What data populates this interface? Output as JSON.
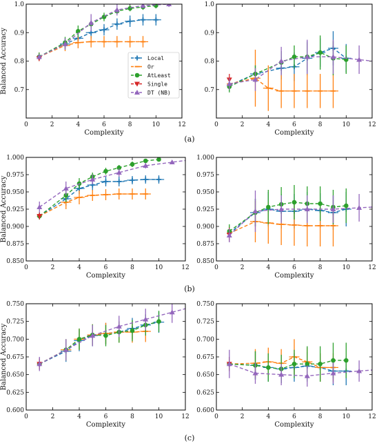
{
  "colors": {
    "Local": "#1f77b4",
    "Or": "#ff7f0e",
    "AtLeast": "#2ca02c",
    "Single": "#d62728",
    "DT (NB)": "#9467bd"
  },
  "chart_data": [
    {
      "type": "line",
      "panel": "a-left",
      "caption": "",
      "xlabel": "Complexity",
      "ylabel": "Balanced Accuracy",
      "xlim": [
        0,
        12
      ],
      "ylim": [
        0.6,
        1.0
      ],
      "xticks": [
        0,
        2,
        4,
        6,
        8,
        10,
        12
      ],
      "yticks": [
        0.7,
        0.8,
        0.9,
        1.0
      ],
      "legend": {
        "placement": "center-right",
        "entries": [
          "Local",
          "Or",
          "AtLeast",
          "Single",
          "DT (NB)"
        ]
      },
      "series": [
        {
          "name": "Local",
          "x": [
            1,
            3,
            4,
            5,
            6,
            7,
            8,
            9,
            10
          ],
          "y": [
            0.815,
            0.86,
            0.88,
            0.9,
            0.91,
            0.93,
            0.94,
            0.945,
            0.945
          ],
          "err": [
            0.015,
            0.02,
            0.02,
            0.02,
            0.02,
            0.02,
            0.02,
            0.02,
            0.02
          ]
        },
        {
          "name": "Or",
          "x": [
            1,
            3,
            4,
            5,
            6,
            7,
            8,
            9
          ],
          "y": [
            0.815,
            0.855,
            0.865,
            0.868,
            0.868,
            0.868,
            0.868,
            0.868
          ],
          "err": [
            0.015,
            0.02,
            0.02,
            0.02,
            0.02,
            0.02,
            0.02,
            0.02
          ]
        },
        {
          "name": "AtLeast",
          "x": [
            1,
            3,
            4,
            5,
            6,
            7,
            8,
            9,
            10
          ],
          "y": [
            0.815,
            0.865,
            0.905,
            0.93,
            0.955,
            0.975,
            0.985,
            0.99,
            0.995
          ],
          "err": [
            0.015,
            0.02,
            0.02,
            0.015,
            0.015,
            0.01,
            0.01,
            0.01,
            0.01
          ]
        },
        {
          "name": "Single",
          "x": [
            1
          ],
          "y": [
            0.81
          ],
          "err": [
            0.01
          ]
        },
        {
          "name": "DT (NB)",
          "x": [
            1,
            3,
            5,
            7,
            9,
            11
          ],
          "y": [
            0.815,
            0.86,
            0.935,
            0.98,
            0.995,
            1.0
          ],
          "err": [
            0.01,
            0.02,
            0.03,
            0.02,
            0.01,
            0.01
          ]
        }
      ]
    },
    {
      "type": "line",
      "panel": "a-right",
      "caption": "(a)",
      "xlabel": "Complexity",
      "ylabel": "",
      "xlim": [
        0,
        12
      ],
      "ylim": [
        0.6,
        1.0
      ],
      "xticks": [
        0,
        2,
        4,
        6,
        8,
        10,
        12
      ],
      "yticks": [
        0.7,
        0.8,
        0.9,
        1.0
      ],
      "series": [
        {
          "name": "Local",
          "x": [
            1,
            3,
            5,
            6,
            7,
            8,
            9,
            10
          ],
          "y": [
            0.715,
            0.755,
            0.775,
            0.78,
            0.81,
            0.83,
            0.845,
            0.81
          ],
          "err": [
            0.02,
            0.03,
            0.04,
            0.05,
            0.06,
            0.05,
            0.06,
            0.05
          ]
        },
        {
          "name": "Or",
          "x": [
            1,
            3,
            4,
            5,
            6,
            7,
            8,
            9
          ],
          "y": [
            0.72,
            0.74,
            0.705,
            0.695,
            0.695,
            0.695,
            0.695,
            0.695
          ],
          "err": [
            0.02,
            0.1,
            0.08,
            0.06,
            0.06,
            0.06,
            0.06,
            0.06
          ]
        },
        {
          "name": "AtLeast",
          "x": [
            1,
            3,
            5,
            6,
            7,
            8,
            9,
            10
          ],
          "y": [
            0.71,
            0.755,
            0.795,
            0.815,
            0.815,
            0.83,
            0.81,
            0.805
          ],
          "err": [
            0.02,
            0.03,
            0.04,
            0.04,
            0.05,
            0.06,
            0.06,
            0.05
          ]
        },
        {
          "name": "Single",
          "x": [
            1
          ],
          "y": [
            0.735
          ],
          "err": [
            0.02
          ]
        },
        {
          "name": "DT (NB)",
          "x": [
            1,
            3,
            5,
            7,
            9,
            11
          ],
          "y": [
            0.72,
            0.735,
            0.8,
            0.815,
            0.815,
            0.805
          ],
          "err": [
            0.02,
            0.04,
            0.05,
            0.06,
            0.06,
            0.05
          ]
        }
      ]
    },
    {
      "type": "line",
      "panel": "b-left",
      "caption": "",
      "xlabel": "Complexity",
      "ylabel": "Balanced Accuracy",
      "xlim": [
        0,
        12
      ],
      "ylim": [
        0.85,
        1.0
      ],
      "xticks": [
        0,
        2,
        4,
        6,
        8,
        10,
        12
      ],
      "yticks": [
        0.85,
        0.875,
        0.9,
        0.925,
        0.95,
        0.975,
        1.0
      ],
      "series": [
        {
          "name": "Local",
          "x": [
            1,
            3,
            4,
            5,
            6,
            7,
            8,
            9,
            10
          ],
          "y": [
            0.915,
            0.94,
            0.955,
            0.96,
            0.965,
            0.965,
            0.967,
            0.968,
            0.968
          ],
          "err": [
            0.005,
            0.01,
            0.008,
            0.008,
            0.007,
            0.007,
            0.006,
            0.006,
            0.006
          ]
        },
        {
          "name": "Or",
          "x": [
            1,
            3,
            4,
            5,
            6,
            7,
            8,
            9
          ],
          "y": [
            0.915,
            0.935,
            0.942,
            0.945,
            0.946,
            0.947,
            0.947,
            0.947
          ],
          "err": [
            0.005,
            0.01,
            0.01,
            0.008,
            0.008,
            0.008,
            0.008,
            0.008
          ]
        },
        {
          "name": "AtLeast",
          "x": [
            1,
            3,
            4,
            5,
            6,
            7,
            8,
            9,
            10
          ],
          "y": [
            0.915,
            0.945,
            0.962,
            0.972,
            0.98,
            0.985,
            0.99,
            0.995,
            0.997
          ],
          "err": [
            0.005,
            0.01,
            0.008,
            0.006,
            0.005,
            0.004,
            0.004,
            0.003,
            0.003
          ]
        },
        {
          "name": "Single",
          "x": [
            1
          ],
          "y": [
            0.915
          ],
          "err": [
            0.005
          ]
        },
        {
          "name": "DT (NB)",
          "x": [
            1,
            3,
            5,
            7,
            9,
            11
          ],
          "y": [
            0.928,
            0.955,
            0.968,
            0.978,
            0.988,
            0.993
          ],
          "err": [
            0.008,
            0.01,
            0.007,
            0.006,
            0.004,
            0.003
          ]
        }
      ]
    },
    {
      "type": "line",
      "panel": "b-right",
      "caption": "(b)",
      "xlabel": "Complexity",
      "ylabel": "",
      "xlim": [
        0,
        12
      ],
      "ylim": [
        0.85,
        1.0
      ],
      "xticks": [
        0,
        2,
        4,
        6,
        8,
        10,
        12
      ],
      "yticks": [
        0.85,
        0.875,
        0.9,
        0.925,
        0.95,
        0.975,
        1.0
      ],
      "series": [
        {
          "name": "Local",
          "x": [
            1,
            3,
            4,
            5,
            6,
            7,
            8,
            9,
            10
          ],
          "y": [
            0.89,
            0.92,
            0.925,
            0.922,
            0.922,
            0.925,
            0.923,
            0.92,
            0.925
          ],
          "err": [
            0.01,
            0.02,
            0.025,
            0.025,
            0.025,
            0.025,
            0.025,
            0.025,
            0.025
          ]
        },
        {
          "name": "Or",
          "x": [
            1,
            3,
            4,
            5,
            6,
            7,
            8,
            9
          ],
          "y": [
            0.89,
            0.907,
            0.905,
            0.903,
            0.902,
            0.901,
            0.901,
            0.901
          ],
          "err": [
            0.01,
            0.03,
            0.03,
            0.03,
            0.03,
            0.03,
            0.03,
            0.03
          ]
        },
        {
          "name": "AtLeast",
          "x": [
            1,
            3,
            4,
            5,
            6,
            7,
            8,
            9,
            10
          ],
          "y": [
            0.893,
            0.92,
            0.928,
            0.932,
            0.935,
            0.933,
            0.933,
            0.928,
            0.93
          ],
          "err": [
            0.01,
            0.02,
            0.025,
            0.025,
            0.025,
            0.025,
            0.025,
            0.025,
            0.025
          ]
        },
        {
          "name": "Single",
          "x": [
            1
          ],
          "y": [
            0.888
          ],
          "err": [
            0.01
          ]
        },
        {
          "name": "DT (NB)",
          "x": [
            1,
            3,
            5,
            7,
            9,
            11
          ],
          "y": [
            0.887,
            0.922,
            0.925,
            0.925,
            0.925,
            0.927
          ],
          "err": [
            0.01,
            0.03,
            0.02,
            0.02,
            0.02,
            0.02
          ]
        }
      ]
    },
    {
      "type": "line",
      "panel": "c-left",
      "caption": "",
      "xlabel": "Complexity",
      "ylabel": "Balanced Accuracy",
      "xlim": [
        0,
        12
      ],
      "ylim": [
        0.6,
        0.75
      ],
      "xticks": [
        0,
        2,
        4,
        6,
        8,
        10,
        12
      ],
      "yticks": [
        0.6,
        0.625,
        0.65,
        0.675,
        0.7,
        0.725,
        0.75
      ],
      "series": [
        {
          "name": "Local",
          "x": [
            1,
            3,
            4,
            5,
            6,
            7,
            8,
            9,
            10
          ],
          "y": [
            0.665,
            0.683,
            0.698,
            0.705,
            0.708,
            0.71,
            0.715,
            0.72,
            0.724
          ],
          "err": [
            0.008,
            0.015,
            0.015,
            0.015,
            0.015,
            0.015,
            0.015,
            0.015,
            0.015
          ]
        },
        {
          "name": "Or",
          "x": [
            1,
            3,
            4,
            5,
            6,
            7,
            8,
            9
          ],
          "y": [
            0.665,
            0.685,
            0.7,
            0.706,
            0.708,
            0.71,
            0.71,
            0.711
          ],
          "err": [
            0.008,
            0.015,
            0.015,
            0.015,
            0.015,
            0.015,
            0.015,
            0.015
          ]
        },
        {
          "name": "AtLeast",
          "x": [
            1,
            3,
            4,
            5,
            6,
            7,
            8,
            9,
            10
          ],
          "y": [
            0.665,
            0.685,
            0.7,
            0.706,
            0.705,
            0.71,
            0.712,
            0.72,
            0.725
          ],
          "err": [
            0.008,
            0.015,
            0.015,
            0.015,
            0.015,
            0.015,
            0.015,
            0.015,
            0.015
          ]
        },
        {
          "name": "Single",
          "x": [
            1
          ],
          "y": [
            0.665
          ],
          "err": [
            0.008
          ]
        },
        {
          "name": "DT (NB)",
          "x": [
            1,
            3,
            5,
            7,
            9,
            11
          ],
          "y": [
            0.665,
            0.685,
            0.705,
            0.718,
            0.728,
            0.738
          ],
          "err": [
            0.01,
            0.015,
            0.015,
            0.015,
            0.015,
            0.015
          ]
        }
      ]
    },
    {
      "type": "line",
      "panel": "c-right",
      "caption": "(c)",
      "xlabel": "Complexity",
      "ylabel": "",
      "xlim": [
        0,
        12
      ],
      "ylim": [
        0.6,
        0.75
      ],
      "xticks": [
        0,
        2,
        4,
        6,
        8,
        10,
        12
      ],
      "yticks": [
        0.6,
        0.625,
        0.65,
        0.675,
        0.7,
        0.725,
        0.75
      ],
      "series": [
        {
          "name": "Local",
          "x": [
            1,
            3,
            4,
            5,
            6,
            7,
            8,
            9,
            10
          ],
          "y": [
            0.665,
            0.663,
            0.66,
            0.658,
            0.66,
            0.662,
            0.66,
            0.655,
            0.655
          ],
          "err": [
            0.01,
            0.02,
            0.02,
            0.02,
            0.02,
            0.02,
            0.02,
            0.02,
            0.02
          ]
        },
        {
          "name": "Or",
          "x": [
            1,
            3,
            4,
            5,
            6,
            7,
            8,
            9
          ],
          "y": [
            0.665,
            0.666,
            0.668,
            0.666,
            0.675,
            0.668,
            0.66,
            0.66
          ],
          "err": [
            0.01,
            0.02,
            0.02,
            0.02,
            0.025,
            0.02,
            0.02,
            0.02
          ]
        },
        {
          "name": "AtLeast",
          "x": [
            1,
            3,
            4,
            5,
            6,
            7,
            8,
            9,
            10
          ],
          "y": [
            0.665,
            0.663,
            0.66,
            0.658,
            0.665,
            0.665,
            0.665,
            0.67,
            0.67
          ],
          "err": [
            0.01,
            0.02,
            0.02,
            0.02,
            0.02,
            0.025,
            0.025,
            0.025,
            0.025
          ]
        },
        {
          "name": "Single",
          "x": [
            1
          ],
          "y": [
            0.665
          ],
          "err": [
            0.01
          ]
        },
        {
          "name": "DT (NB)",
          "x": [
            1,
            3,
            5,
            7,
            9,
            11
          ],
          "y": [
            0.665,
            0.652,
            0.65,
            0.648,
            0.652,
            0.655
          ],
          "err": [
            0.02,
            0.015,
            0.015,
            0.015,
            0.015,
            0.015
          ]
        }
      ]
    }
  ]
}
